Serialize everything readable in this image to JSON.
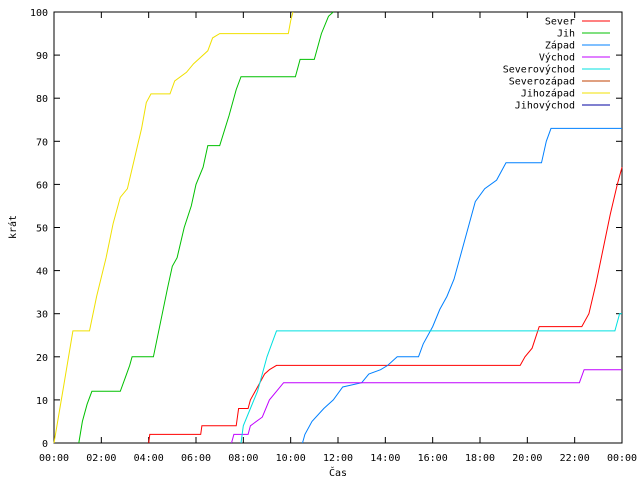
{
  "chart_data": {
    "type": "line",
    "xlabel": "Čas",
    "ylabel": "krát",
    "xlim": [
      0,
      24
    ],
    "ylim": [
      0,
      100
    ],
    "x_ticks": [
      {
        "v": 0,
        "label": "00:00"
      },
      {
        "v": 2,
        "label": "02:00"
      },
      {
        "v": 4,
        "label": "04:00"
      },
      {
        "v": 6,
        "label": "06:00"
      },
      {
        "v": 8,
        "label": "08:00"
      },
      {
        "v": 10,
        "label": "10:00"
      },
      {
        "v": 12,
        "label": "12:00"
      },
      {
        "v": 14,
        "label": "14:00"
      },
      {
        "v": 16,
        "label": "16:00"
      },
      {
        "v": 18,
        "label": "18:00"
      },
      {
        "v": 20,
        "label": "20:00"
      },
      {
        "v": 22,
        "label": "22:00"
      },
      {
        "v": 24,
        "label": "00:00"
      }
    ],
    "y_ticks": [
      {
        "v": 0,
        "label": "0"
      },
      {
        "v": 10,
        "label": "10"
      },
      {
        "v": 20,
        "label": "20"
      },
      {
        "v": 30,
        "label": "30"
      },
      {
        "v": 40,
        "label": "40"
      },
      {
        "v": 50,
        "label": "50"
      },
      {
        "v": 60,
        "label": "60"
      },
      {
        "v": 70,
        "label": "70"
      },
      {
        "v": 80,
        "label": "80"
      },
      {
        "v": 90,
        "label": "90"
      },
      {
        "v": 100,
        "label": "100"
      }
    ],
    "legend_position": "top-right",
    "grid": false,
    "series": [
      {
        "name": "Sever",
        "color": "#ff0000",
        "points": [
          [
            4.0,
            0
          ],
          [
            4.05,
            2
          ],
          [
            6.2,
            2
          ],
          [
            6.25,
            4
          ],
          [
            7.7,
            4
          ],
          [
            7.8,
            8
          ],
          [
            8.2,
            8
          ],
          [
            8.3,
            10
          ],
          [
            8.5,
            12
          ],
          [
            8.7,
            14
          ],
          [
            8.9,
            16
          ],
          [
            9.1,
            17
          ],
          [
            9.4,
            18
          ],
          [
            19.7,
            18
          ],
          [
            19.9,
            20
          ],
          [
            20.2,
            22
          ],
          [
            20.5,
            27
          ],
          [
            22.3,
            27
          ],
          [
            22.6,
            30
          ],
          [
            22.9,
            37
          ],
          [
            23.2,
            45
          ],
          [
            23.5,
            53
          ],
          [
            23.8,
            60
          ],
          [
            24.0,
            64
          ]
        ]
      },
      {
        "name": "Jih",
        "color": "#00c000",
        "points": [
          [
            1.05,
            0
          ],
          [
            1.2,
            5
          ],
          [
            1.4,
            9
          ],
          [
            1.6,
            12
          ],
          [
            2.8,
            12
          ],
          [
            3.0,
            15
          ],
          [
            3.2,
            18
          ],
          [
            3.3,
            20
          ],
          [
            4.2,
            20
          ],
          [
            4.5,
            28
          ],
          [
            4.8,
            36
          ],
          [
            5.0,
            41
          ],
          [
            5.2,
            43
          ],
          [
            5.5,
            50
          ],
          [
            5.8,
            55
          ],
          [
            6.0,
            60
          ],
          [
            6.3,
            64
          ],
          [
            6.5,
            69
          ],
          [
            7.0,
            69
          ],
          [
            7.4,
            76
          ],
          [
            7.7,
            82
          ],
          [
            7.9,
            85
          ],
          [
            10.2,
            85
          ],
          [
            10.4,
            89
          ],
          [
            11.0,
            89
          ],
          [
            11.3,
            95
          ],
          [
            11.6,
            99
          ],
          [
            11.8,
            100
          ]
        ]
      },
      {
        "name": "Západ",
        "color": "#0080ff",
        "points": [
          [
            10.5,
            0
          ],
          [
            10.6,
            2
          ],
          [
            10.9,
            5
          ],
          [
            11.4,
            8
          ],
          [
            11.8,
            10
          ],
          [
            12.2,
            13
          ],
          [
            13.0,
            14
          ],
          [
            13.3,
            16
          ],
          [
            13.8,
            17
          ],
          [
            14.1,
            18
          ],
          [
            14.5,
            20
          ],
          [
            15.4,
            20
          ],
          [
            15.6,
            23
          ],
          [
            16.0,
            27
          ],
          [
            16.3,
            31
          ],
          [
            16.6,
            34
          ],
          [
            16.9,
            38
          ],
          [
            17.2,
            44
          ],
          [
            17.5,
            50
          ],
          [
            17.8,
            56
          ],
          [
            18.2,
            59
          ],
          [
            18.7,
            61
          ],
          [
            19.1,
            65
          ],
          [
            20.6,
            65
          ],
          [
            20.8,
            70
          ],
          [
            21.0,
            73
          ],
          [
            24.0,
            73
          ]
        ]
      },
      {
        "name": "Východ",
        "color": "#c000ff",
        "points": [
          [
            7.5,
            0
          ],
          [
            7.6,
            2
          ],
          [
            8.2,
            2
          ],
          [
            8.3,
            4
          ],
          [
            8.8,
            6
          ],
          [
            9.1,
            10
          ],
          [
            9.4,
            12
          ],
          [
            9.7,
            14
          ],
          [
            22.2,
            14
          ],
          [
            22.4,
            17
          ],
          [
            24.0,
            17
          ]
        ]
      },
      {
        "name": "Severovýchod",
        "color": "#00e0e0",
        "points": [
          [
            7.9,
            0
          ],
          [
            8.0,
            4
          ],
          [
            8.3,
            8
          ],
          [
            8.6,
            12
          ],
          [
            8.8,
            16
          ],
          [
            9.0,
            20
          ],
          [
            9.2,
            23
          ],
          [
            9.4,
            26
          ],
          [
            23.7,
            26
          ],
          [
            23.9,
            30
          ],
          [
            24.0,
            30
          ]
        ]
      },
      {
        "name": "Severozápad",
        "color": "#c04000",
        "points": []
      },
      {
        "name": "Jihozápad",
        "color": "#f0e000",
        "points": [
          [
            0.0,
            0
          ],
          [
            0.4,
            13
          ],
          [
            0.8,
            26
          ],
          [
            1.5,
            26
          ],
          [
            1.8,
            34
          ],
          [
            2.2,
            43
          ],
          [
            2.5,
            51
          ],
          [
            2.8,
            57
          ],
          [
            3.1,
            59
          ],
          [
            3.4,
            66
          ],
          [
            3.7,
            73
          ],
          [
            3.9,
            79
          ],
          [
            4.1,
            81
          ],
          [
            4.9,
            81
          ],
          [
            5.1,
            84
          ],
          [
            5.6,
            86
          ],
          [
            5.9,
            88
          ],
          [
            6.5,
            91
          ],
          [
            6.7,
            94
          ],
          [
            7.0,
            95
          ],
          [
            9.9,
            95
          ],
          [
            10.0,
            98
          ],
          [
            10.1,
            100
          ]
        ]
      },
      {
        "name": "Jihovýchod",
        "color": "#0000a0",
        "points": []
      }
    ]
  }
}
